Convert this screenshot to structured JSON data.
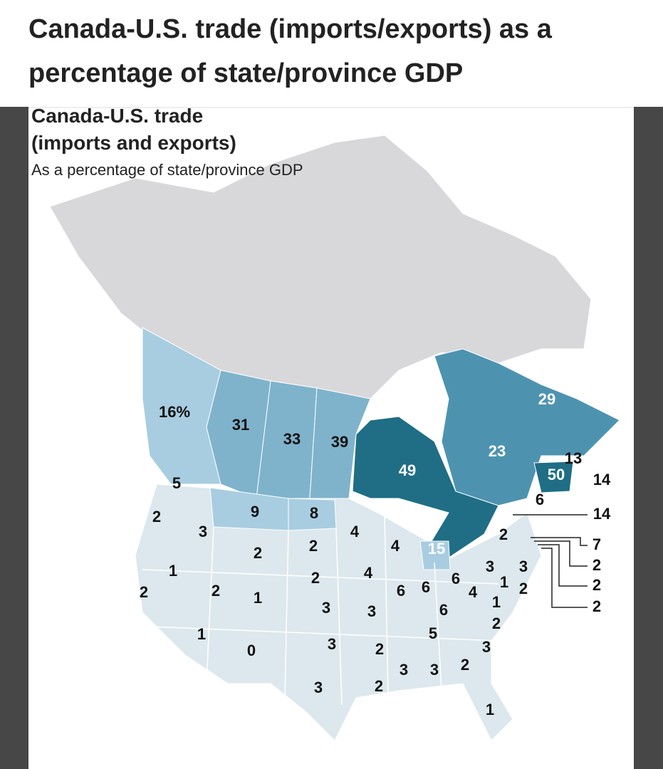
{
  "header": {
    "title": "Canada-U.S. trade (imports/exports) as a percentage of state/province GDP"
  },
  "map": {
    "title_line1": "Canada-U.S. trade",
    "title_line2": "(imports and exports)",
    "subtitle": "As a percentage of state/province GDP",
    "labels": [
      "16%",
      "31",
      "33",
      "39",
      "49",
      "23",
      "29",
      "13",
      "50",
      "14",
      "6",
      "14",
      "2",
      "7",
      "2",
      "2",
      "2",
      "15",
      "5",
      "2",
      "3",
      "9",
      "8",
      "4",
      "2",
      "2",
      "4",
      "1",
      "2",
      "4",
      "3",
      "3",
      "2",
      "2",
      "1",
      "6",
      "6",
      "6",
      "4",
      "1",
      "2",
      "3",
      "3",
      "6",
      "1",
      "2",
      "5",
      "1",
      "0",
      "3",
      "2",
      "3",
      "3",
      "3",
      "2",
      "3",
      "2",
      "1"
    ]
  }
}
